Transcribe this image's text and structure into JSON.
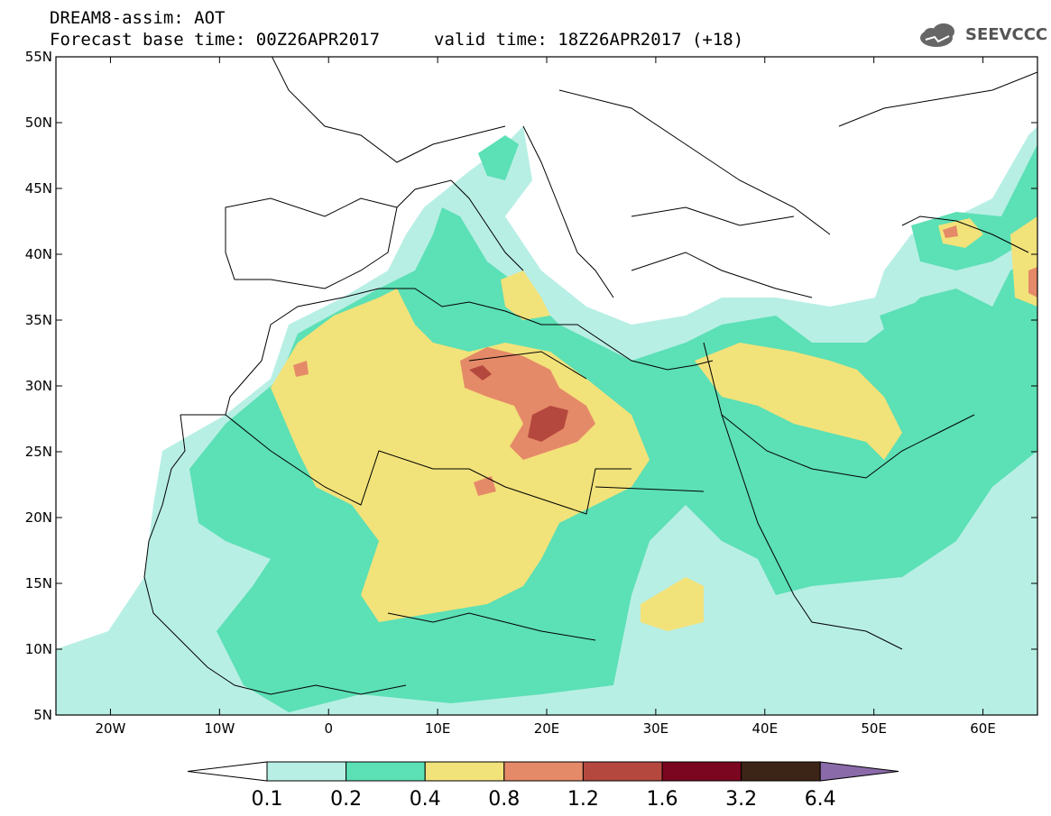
{
  "header": {
    "line1": "DREAM8-assim: AOT",
    "line2": "Forecast base time: 00Z26APR2017",
    "valid": "valid time: 18Z26APR2017 (+18)"
  },
  "logo": {
    "text": "SEEVCCC",
    "icon": "cloud-icon"
  },
  "map": {
    "lon_labels": [
      "20W",
      "10W",
      "0",
      "10E",
      "20E",
      "30E",
      "40E",
      "50E",
      "60E"
    ],
    "lat_labels": [
      "55N",
      "50N",
      "45N",
      "40N",
      "35N",
      "30N",
      "25N",
      "20N",
      "15N",
      "10N",
      "5N"
    ],
    "lon_range": [
      -25,
      65
    ],
    "lat_range": [
      5,
      55
    ]
  },
  "colorbar": {
    "labels": [
      "0.1",
      "0.2",
      "0.4",
      "0.8",
      "1.2",
      "1.6",
      "3.2",
      "6.4"
    ],
    "colors": [
      "#ffffff",
      "#b8efe5",
      "#5ce0b5",
      "#f2e27a",
      "#e58a68",
      "#b5483e",
      "#7a0620",
      "#3c2416",
      "#8a6aa8"
    ]
  },
  "colors": {
    "light": "#b8efe5",
    "green": "#5ce0b5",
    "yellow": "#f2e27a",
    "orange": "#e58a68",
    "red": "#b5483e"
  }
}
